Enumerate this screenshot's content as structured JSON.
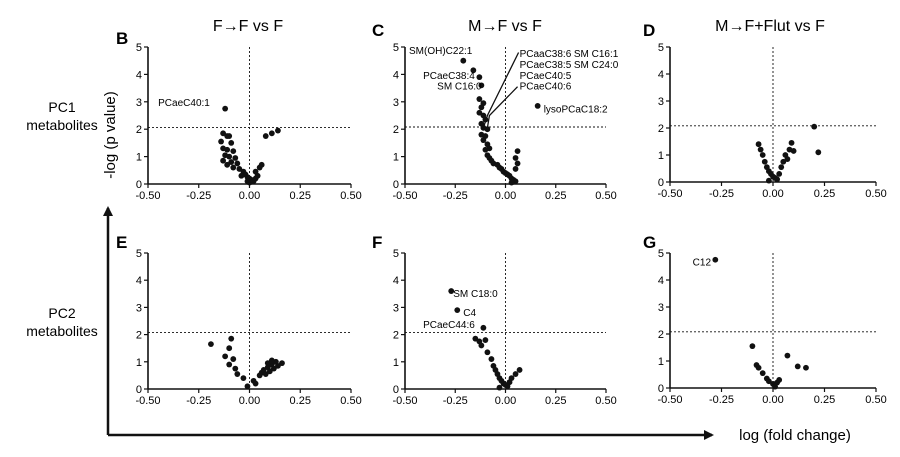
{
  "rows": [
    {
      "label_line1": "PC1",
      "label_line2": "metabolites"
    },
    {
      "label_line1": "PC2",
      "label_line2": "metabolites"
    }
  ],
  "axes": {
    "ylabel": "-log (p value)",
    "xlabel": "log (fold change)"
  },
  "colors": {
    "ink": "#111111",
    "point": "#111111"
  },
  "chart_data": [
    {
      "type": "scatter",
      "letter": "B",
      "title": "F→F vs F",
      "xlim": [
        -0.5,
        0.5
      ],
      "ylim": [
        0,
        5
      ],
      "xticks": [
        "-0.50",
        "-0.25",
        "0.00",
        "0.25",
        "0.50"
      ],
      "yticks": [
        "0",
        "1",
        "2",
        "3",
        "4",
        "5"
      ],
      "threshold_y": 2.06,
      "threshold_x": 0,
      "points": [
        [
          -0.12,
          2.75
        ],
        [
          -0.13,
          1.85
        ],
        [
          -0.11,
          1.75
        ],
        [
          -0.1,
          1.75
        ],
        [
          -0.14,
          1.55
        ],
        [
          -0.09,
          1.5
        ],
        [
          -0.13,
          1.3
        ],
        [
          -0.11,
          1.25
        ],
        [
          -0.08,
          1.2
        ],
        [
          -0.12,
          1.05
        ],
        [
          -0.1,
          1.0
        ],
        [
          -0.07,
          0.95
        ],
        [
          -0.13,
          0.85
        ],
        [
          -0.09,
          0.8
        ],
        [
          -0.06,
          0.75
        ],
        [
          -0.11,
          0.7
        ],
        [
          -0.08,
          0.6
        ],
        [
          -0.05,
          0.55
        ],
        [
          -0.03,
          0.45
        ],
        [
          -0.02,
          0.35
        ],
        [
          -0.04,
          0.3
        ],
        [
          -0.01,
          0.25
        ],
        [
          0.0,
          0.2
        ],
        [
          0.01,
          0.15
        ],
        [
          -0.01,
          0.1
        ],
        [
          0.0,
          0.05
        ],
        [
          0.02,
          0.1
        ],
        [
          0.03,
          0.2
        ],
        [
          0.04,
          0.3
        ],
        [
          0.03,
          0.45
        ],
        [
          0.05,
          0.6
        ],
        [
          0.06,
          0.7
        ],
        [
          0.08,
          1.75
        ],
        [
          0.11,
          1.85
        ],
        [
          0.14,
          1.95
        ]
      ],
      "annotations": [
        {
          "text": "PCaeC40:1",
          "x": -0.45,
          "y": 2.95
        }
      ]
    },
    {
      "type": "scatter",
      "letter": "C",
      "title": "M→F vs F",
      "xlim": [
        -0.5,
        0.5
      ],
      "ylim": [
        0,
        5
      ],
      "xticks": [
        "-0.50",
        "-0.25",
        "0.00",
        "0.25",
        "0.50"
      ],
      "yticks": [
        "0",
        "1",
        "2",
        "3",
        "4",
        "5"
      ],
      "threshold_y": 2.08,
      "threshold_x": 0,
      "points": [
        [
          -0.21,
          4.5
        ],
        [
          -0.16,
          4.15
        ],
        [
          -0.13,
          3.9
        ],
        [
          -0.12,
          3.6
        ],
        [
          -0.13,
          3.1
        ],
        [
          -0.11,
          2.95
        ],
        [
          -0.12,
          2.8
        ],
        [
          -0.13,
          2.6
        ],
        [
          -0.11,
          2.5
        ],
        [
          -0.1,
          2.35
        ],
        [
          -0.12,
          2.2
        ],
        [
          -0.11,
          2.05
        ],
        [
          -0.09,
          2.0
        ],
        [
          -0.12,
          1.8
        ],
        [
          -0.1,
          1.75
        ],
        [
          -0.11,
          1.6
        ],
        [
          -0.09,
          1.45
        ],
        [
          -0.08,
          1.3
        ],
        [
          -0.1,
          1.25
        ],
        [
          -0.09,
          1.05
        ],
        [
          -0.08,
          0.95
        ],
        [
          -0.07,
          0.85
        ],
        [
          -0.06,
          0.75
        ],
        [
          -0.04,
          0.7
        ],
        [
          -0.03,
          0.6
        ],
        [
          -0.02,
          0.55
        ],
        [
          -0.01,
          0.45
        ],
        [
          0.0,
          0.4
        ],
        [
          0.01,
          0.35
        ],
        [
          0.02,
          0.3
        ],
        [
          0.03,
          0.2
        ],
        [
          0.04,
          0.15
        ],
        [
          0.05,
          0.1
        ],
        [
          0.03,
          0.05
        ],
        [
          0.05,
          0.55
        ],
        [
          0.06,
          0.75
        ],
        [
          0.05,
          0.95
        ],
        [
          0.06,
          1.2
        ],
        [
          0.16,
          2.85
        ]
      ],
      "annotations": [
        {
          "text": "SM(OH)C22:1",
          "x": -0.48,
          "y": 4.85
        },
        {
          "text": "PCaeC38:4",
          "x": -0.41,
          "y": 3.95
        },
        {
          "text": "SM C16:0",
          "x": -0.34,
          "y": 3.55
        },
        {
          "text": "PCaaC38:6",
          "x": 0.07,
          "y": 4.75
        },
        {
          "text": "PCaeC38:5",
          "x": 0.07,
          "y": 4.35
        },
        {
          "text": "PCaeC40:5",
          "x": 0.07,
          "y": 3.95
        },
        {
          "text": "PCaeC40:6",
          "x": 0.07,
          "y": 3.55
        },
        {
          "text": "SM C16:1",
          "x": 0.34,
          "y": 4.75
        },
        {
          "text": "SM C24:0",
          "x": 0.34,
          "y": 4.35
        },
        {
          "text": "lysoPCaC18:2",
          "x": 0.19,
          "y": 2.72
        }
      ]
    },
    {
      "type": "scatter",
      "letter": "D",
      "title": "M→F+Flut vs F",
      "xlim": [
        -0.5,
        0.5
      ],
      "ylim": [
        0,
        5
      ],
      "xticks": [
        "-0.50",
        "-0.25",
        "0.00",
        "0.25",
        "0.50"
      ],
      "yticks": [
        "0",
        "1",
        "2",
        "3",
        "4",
        "5"
      ],
      "threshold_y": 2.08,
      "threshold_x": 0,
      "points": [
        [
          -0.07,
          1.4
        ],
        [
          -0.06,
          1.2
        ],
        [
          -0.05,
          1.0
        ],
        [
          -0.04,
          0.75
        ],
        [
          -0.03,
          0.55
        ],
        [
          -0.02,
          0.4
        ],
        [
          -0.01,
          0.3
        ],
        [
          0.0,
          0.2
        ],
        [
          0.01,
          0.15
        ],
        [
          0.02,
          0.1
        ],
        [
          -0.02,
          0.05
        ],
        [
          0.03,
          0.3
        ],
        [
          0.04,
          0.55
        ],
        [
          0.05,
          0.75
        ],
        [
          0.06,
          1.0
        ],
        [
          0.07,
          0.85
        ],
        [
          0.08,
          1.2
        ],
        [
          0.1,
          1.15
        ],
        [
          0.09,
          1.45
        ],
        [
          0.2,
          2.05
        ],
        [
          0.22,
          1.1
        ]
      ],
      "annotations": []
    },
    {
      "type": "scatter",
      "letter": "E",
      "title": "",
      "xlim": [
        -0.5,
        0.5
      ],
      "ylim": [
        0,
        5
      ],
      "xticks": [
        "-0.50",
        "-0.25",
        "0.00",
        "0.25",
        "0.50"
      ],
      "yticks": [
        "0",
        "1",
        "2",
        "3",
        "4",
        "5"
      ],
      "threshold_y": 2.08,
      "threshold_x": 0,
      "points": [
        [
          -0.19,
          1.65
        ],
        [
          -0.09,
          1.85
        ],
        [
          -0.1,
          1.5
        ],
        [
          -0.12,
          1.2
        ],
        [
          -0.08,
          1.1
        ],
        [
          -0.1,
          0.9
        ],
        [
          -0.07,
          0.75
        ],
        [
          -0.06,
          0.55
        ],
        [
          -0.03,
          0.4
        ],
        [
          -0.01,
          0.1
        ],
        [
          0.02,
          0.3
        ],
        [
          0.03,
          0.2
        ],
        [
          0.05,
          0.5
        ],
        [
          0.06,
          0.6
        ],
        [
          0.07,
          0.7
        ],
        [
          0.08,
          0.55
        ],
        [
          0.09,
          0.8
        ],
        [
          0.1,
          0.65
        ],
        [
          0.11,
          0.9
        ],
        [
          0.12,
          0.75
        ],
        [
          0.13,
          1.0
        ],
        [
          0.09,
          0.95
        ],
        [
          0.11,
          1.05
        ],
        [
          0.14,
          0.85
        ],
        [
          0.16,
          0.95
        ]
      ],
      "annotations": []
    },
    {
      "type": "scatter",
      "letter": "F",
      "title": "",
      "xlim": [
        -0.5,
        0.5
      ],
      "ylim": [
        0,
        5
      ],
      "xticks": [
        "-0.50",
        "-0.25",
        "0.00",
        "0.25",
        "0.50"
      ],
      "yticks": [
        "0",
        "1",
        "2",
        "3",
        "4",
        "5"
      ],
      "threshold_y": 2.08,
      "threshold_x": 0,
      "points": [
        [
          -0.27,
          3.6
        ],
        [
          -0.24,
          2.9
        ],
        [
          -0.11,
          2.25
        ],
        [
          -0.15,
          1.85
        ],
        [
          -0.13,
          1.75
        ],
        [
          -0.1,
          1.8
        ],
        [
          -0.12,
          1.6
        ],
        [
          -0.09,
          1.35
        ],
        [
          -0.07,
          1.1
        ],
        [
          -0.06,
          0.85
        ],
        [
          -0.05,
          0.7
        ],
        [
          -0.04,
          0.55
        ],
        [
          -0.03,
          0.4
        ],
        [
          -0.02,
          0.3
        ],
        [
          -0.01,
          0.2
        ],
        [
          0.0,
          0.15
        ],
        [
          0.01,
          0.1
        ],
        [
          0.02,
          0.25
        ],
        [
          0.03,
          0.4
        ],
        [
          0.05,
          0.55
        ],
        [
          0.07,
          0.7
        ],
        [
          -0.03,
          0.05
        ]
      ],
      "annotations": [
        {
          "text": "SM C18:0",
          "x": -0.26,
          "y": 3.5
        },
        {
          "text": "C4",
          "x": -0.21,
          "y": 2.8
        },
        {
          "text": "PCaeC44:6",
          "x": -0.41,
          "y": 2.35
        }
      ]
    },
    {
      "type": "scatter",
      "letter": "G",
      "title": "",
      "xlim": [
        -0.5,
        0.5
      ],
      "ylim": [
        0,
        5
      ],
      "xticks": [
        "-0.50",
        "-0.25",
        "0.00",
        "0.25",
        "0.50"
      ],
      "yticks": [
        "0",
        "1",
        "2",
        "3",
        "4",
        "5"
      ],
      "threshold_y": 2.08,
      "threshold_x": 0,
      "points": [
        [
          -0.28,
          4.75
        ],
        [
          -0.1,
          1.55
        ],
        [
          -0.08,
          0.85
        ],
        [
          -0.07,
          0.75
        ],
        [
          -0.05,
          0.55
        ],
        [
          -0.03,
          0.35
        ],
        [
          -0.02,
          0.25
        ],
        [
          0.0,
          0.15
        ],
        [
          0.02,
          0.2
        ],
        [
          0.03,
          0.3
        ],
        [
          0.01,
          0.05
        ],
        [
          0.07,
          1.2
        ],
        [
          0.12,
          0.8
        ],
        [
          0.16,
          0.75
        ]
      ],
      "annotations": [
        {
          "text": "C12",
          "x": -0.39,
          "y": 4.65
        }
      ]
    }
  ]
}
